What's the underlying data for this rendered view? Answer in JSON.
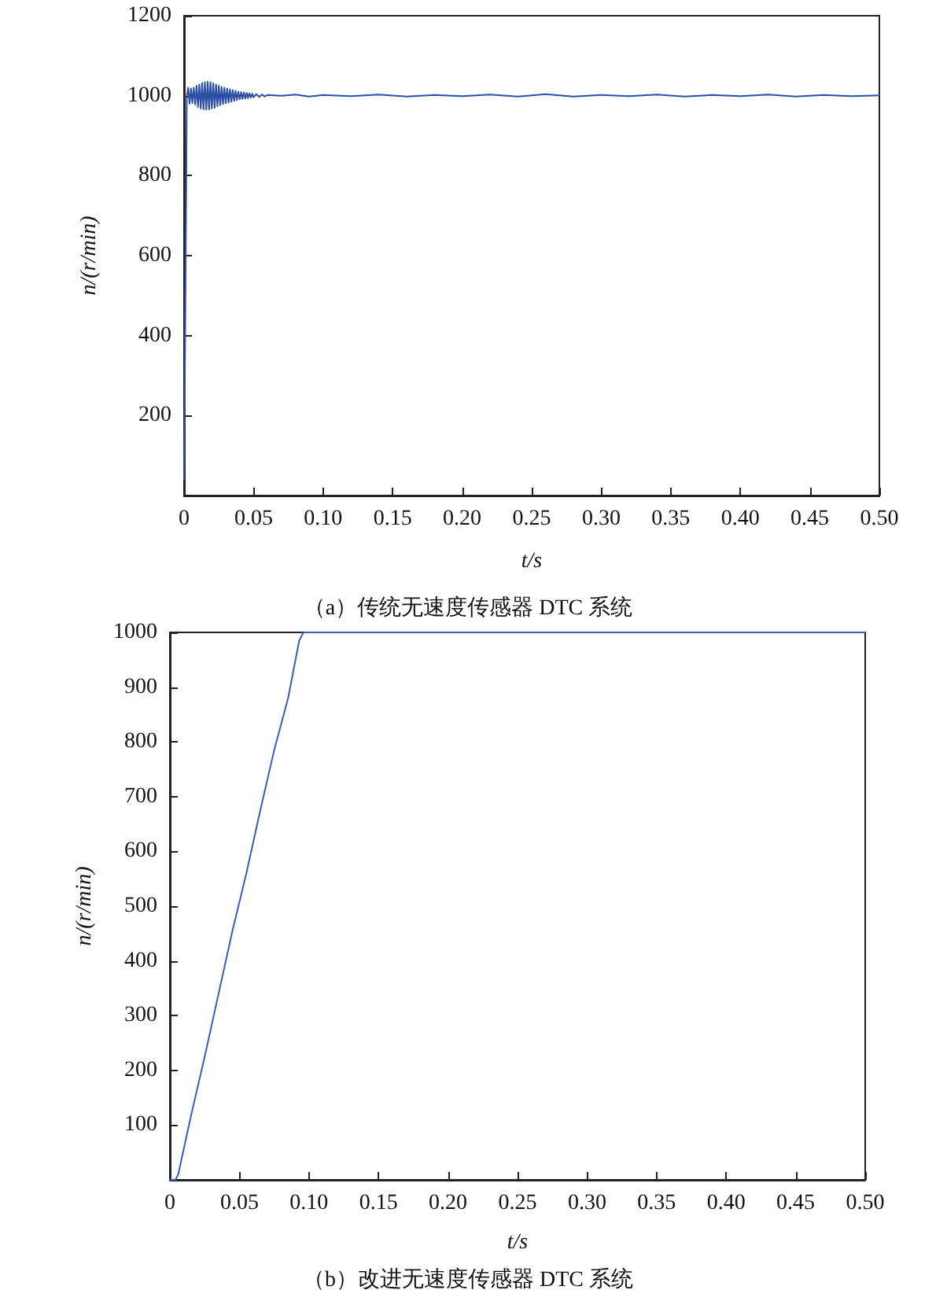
{
  "chart_data": [
    {
      "type": "line",
      "xlabel": "t/s",
      "ylabel": "n/(r/min)",
      "annotations": [
        "（a）传统无速度传感器 DTC 系统"
      ],
      "grid": false,
      "marker": "none",
      "line_style": "solid",
      "xlim": [
        0,
        0.5
      ],
      "xticks": [
        0,
        0.05,
        {
          "value": 0.1,
          "label": "0.10"
        },
        0.15,
        {
          "value": 0.2,
          "label": "0.20"
        },
        0.25,
        {
          "value": 0.3,
          "label": "0.30"
        },
        0.35,
        {
          "value": 0.4,
          "label": "0.40"
        },
        0.45,
        {
          "value": 0.5,
          "label": "0.50"
        }
      ],
      "ylim": [
        0,
        1200
      ],
      "yticks": [
        200,
        400,
        600,
        800,
        1000,
        1200
      ],
      "series": [
        {
          "color": "#2b4ea6",
          "x": [
            0,
            0.001,
            0.002,
            0.003,
            0.004,
            0.005,
            0.006,
            0.007,
            0.008,
            0.009,
            0.01,
            0.011,
            0.012,
            0.013,
            0.014,
            0.015,
            0.016,
            0.017,
            0.018,
            0.019,
            0.02,
            0.021,
            0.022,
            0.023,
            0.024,
            0.025,
            0.026,
            0.027,
            0.028,
            0.029,
            0.03,
            0.031,
            0.032,
            0.033,
            0.034,
            0.035,
            0.036,
            0.037,
            0.038,
            0.039,
            0.04,
            0.041,
            0.042,
            0.043,
            0.044,
            0.045,
            0.046,
            0.047,
            0.048,
            0.049,
            0.05,
            0.052,
            0.054,
            0.056,
            0.058,
            0.06,
            0.07,
            0.08,
            0.09,
            0.1,
            0.12,
            0.14,
            0.16,
            0.18,
            0.2,
            0.22,
            0.24,
            0.26,
            0.28,
            0.3,
            0.32,
            0.34,
            0.36,
            0.38,
            0.4,
            0.42,
            0.44,
            0.46,
            0.48,
            0.5
          ],
          "values": [
            40,
            500,
            1000,
            1020,
            980,
            1018,
            982,
            1020,
            978,
            1025,
            972,
            1028,
            968,
            1032,
            966,
            1034,
            965,
            1035,
            966,
            1034,
            968,
            1031,
            970,
            1028,
            974,
            1025,
            976,
            1022,
            979,
            1020,
            981,
            1018,
            983,
            1016,
            985,
            1014,
            987,
            1012,
            989,
            1010,
            991,
            1009,
            992,
            1008,
            993,
            1007,
            994,
            1006,
            995,
            1005,
            996,
            1004,
            997,
            1003,
            998,
            1002,
            1000,
            1003,
            998,
            1002,
            999,
            1003,
            998,
            1002,
            999,
            1003,
            998,
            1004,
            998,
            1002,
            999,
            1003,
            998,
            1002,
            999,
            1003,
            998,
            1002,
            999,
            1001
          ]
        }
      ]
    },
    {
      "type": "line",
      "xlabel": "t/s",
      "ylabel": "n/(r/min)",
      "annotations": [
        "（b）改进无速度传感器 DTC 系统"
      ],
      "grid": false,
      "marker": "none",
      "line_style": "solid",
      "xlim": [
        0,
        0.5
      ],
      "xticks": [
        0,
        0.05,
        {
          "value": 0.1,
          "label": "0.10"
        },
        0.15,
        {
          "value": 0.2,
          "label": "0.20"
        },
        0.25,
        {
          "value": 0.3,
          "label": "0.30"
        },
        0.35,
        {
          "value": 0.4,
          "label": "0.40"
        },
        0.45,
        {
          "value": 0.5,
          "label": "0.50"
        }
      ],
      "ylim": [
        0,
        1000
      ],
      "yticks": [
        100,
        200,
        300,
        400,
        500,
        600,
        700,
        800,
        900,
        1000
      ],
      "series": [
        {
          "color": "#3a5cbf",
          "x": [
            0,
            0.004,
            0.006,
            0.015,
            0.025,
            0.035,
            0.045,
            0.055,
            0.065,
            0.075,
            0.085,
            0.093,
            0.096,
            0.15,
            0.25,
            0.35,
            0.45,
            0.5
          ],
          "values": [
            0,
            0,
            10,
            115,
            225,
            340,
            455,
            560,
            675,
            785,
            880,
            985,
            1000,
            1000,
            1000,
            1000,
            1000,
            1000
          ]
        }
      ]
    }
  ]
}
